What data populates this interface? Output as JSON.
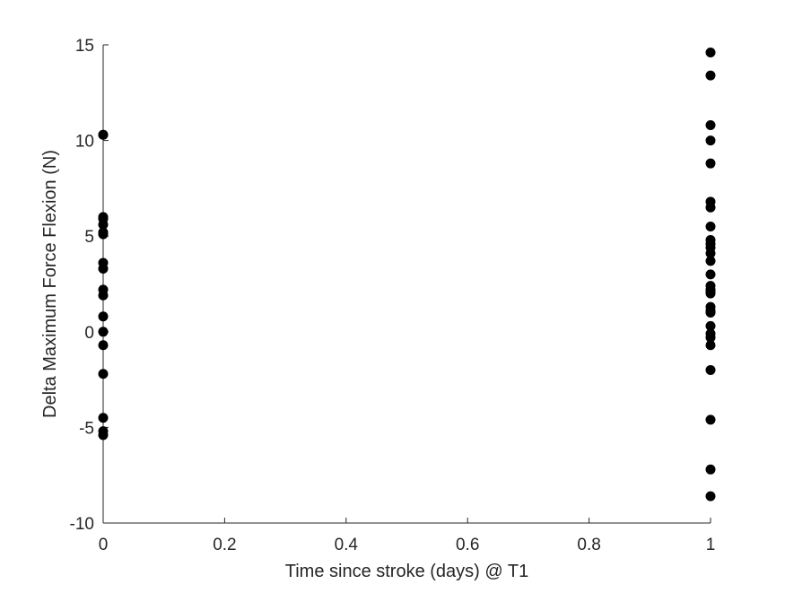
{
  "chart_data": {
    "type": "scatter",
    "title": "",
    "xlabel": "Time since stroke (days) @ T1",
    "ylabel": "Delta Maximum Force Flexion (N)",
    "xlim": [
      0,
      1
    ],
    "ylim": [
      -10,
      15
    ],
    "xticks": [
      "0",
      "0.2",
      "0.4",
      "0.6",
      "0.8",
      "1"
    ],
    "yticks": [
      "-10",
      "-5",
      "0",
      "5",
      "10",
      "15"
    ],
    "grid": false,
    "legend": "none",
    "marker_color": "#000000",
    "series": [
      {
        "x": [
          0,
          0,
          0,
          0,
          0,
          0,
          0,
          0,
          0,
          0,
          0,
          0,
          0,
          0,
          0,
          0,
          0,
          0,
          1,
          1,
          1,
          1,
          1,
          1,
          1,
          1,
          1,
          1,
          1,
          1,
          1,
          1,
          1,
          1,
          1,
          1,
          1,
          1,
          1,
          1,
          1,
          1,
          1,
          1,
          1,
          1,
          1
        ],
        "y": [
          10.3,
          6.0,
          5.6,
          5.2,
          3.6,
          3.3,
          2.2,
          1.9,
          0.8,
          0.0,
          -0.7,
          -2.2,
          -4.5,
          -5.2,
          -5.4,
          10.3,
          5.9,
          5.1,
          14.6,
          13.4,
          10.8,
          10.0,
          8.8,
          6.8,
          6.5,
          5.5,
          4.8,
          4.4,
          4.1,
          3.7,
          3.0,
          2.4,
          2.2,
          2.0,
          1.3,
          1.0,
          0.3,
          -0.1,
          -0.3,
          -0.7,
          -2.0,
          -4.6,
          -7.2,
          -8.6,
          4.6,
          1.1,
          2.1
        ]
      }
    ]
  }
}
